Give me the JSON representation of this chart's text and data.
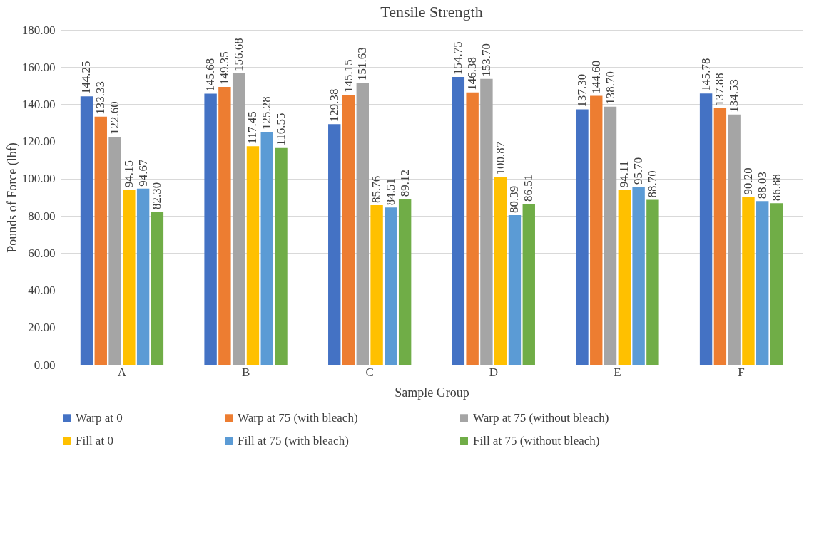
{
  "chart_data": {
    "type": "bar",
    "title": "Tensile Strength",
    "xlabel": "Sample Group",
    "ylabel": "Pounds of Force (lbf)",
    "categories": [
      "A",
      "B",
      "C",
      "D",
      "E",
      "F"
    ],
    "series": [
      {
        "name": "Warp at 0",
        "color": "#4472c4",
        "values": [
          144.25,
          145.68,
          129.38,
          154.75,
          137.3,
          145.78
        ],
        "value_labels": [
          "144.25",
          "145.68",
          "129.38",
          "154.75",
          "137.30",
          "145.78"
        ]
      },
      {
        "name": "Warp at 75 (with bleach)",
        "color": "#ed7d31",
        "values": [
          133.33,
          149.35,
          145.15,
          146.38,
          144.6,
          137.88
        ],
        "value_labels": [
          "133.33",
          "149.35",
          "145.15",
          "146.38",
          "144.60",
          "137.88"
        ]
      },
      {
        "name": "Warp at 75 (without bleach)",
        "color": "#a5a5a5",
        "values": [
          122.6,
          156.68,
          151.63,
          153.7,
          138.7,
          134.53
        ],
        "value_labels": [
          "122.60",
          "156.68",
          "151.63",
          "153.70",
          "138.70",
          "134.53"
        ]
      },
      {
        "name": "Fill at 0",
        "color": "#ffc000",
        "values": [
          94.15,
          117.45,
          85.76,
          100.87,
          94.11,
          90.2
        ],
        "value_labels": [
          "94.15",
          "117.45",
          "85.76",
          "100.87",
          "94.11",
          "90.20"
        ]
      },
      {
        "name": "Fill at 75 (with bleach)",
        "color": "#5b9bd5",
        "values": [
          94.67,
          125.28,
          84.51,
          80.39,
          95.7,
          88.03
        ],
        "value_labels": [
          "94.67",
          "125.28",
          "84.51",
          "80.39",
          "95.70",
          "88.03"
        ]
      },
      {
        "name": "Fill at 75 (without bleach)",
        "color": "#70ad47",
        "values": [
          82.3,
          116.55,
          89.12,
          86.51,
          88.7,
          86.88
        ],
        "value_labels": [
          "82.30",
          "116.55",
          "89.12",
          "86.51",
          "88.70",
          "86.88"
        ]
      }
    ],
    "ylim": [
      0,
      180
    ],
    "yticks": [
      {
        "value": 0,
        "label": "0.00"
      },
      {
        "value": 20,
        "label": "20.00"
      },
      {
        "value": 40,
        "label": "40.00"
      },
      {
        "value": 60,
        "label": "60.00"
      },
      {
        "value": 80,
        "label": "80.00"
      },
      {
        "value": 100,
        "label": "100.00"
      },
      {
        "value": 120,
        "label": "120.00"
      },
      {
        "value": 140,
        "label": "140.00"
      },
      {
        "value": 160,
        "label": "160.00"
      },
      {
        "value": 180,
        "label": "180.00"
      }
    ],
    "grid": "y",
    "legend": "bottom"
  }
}
